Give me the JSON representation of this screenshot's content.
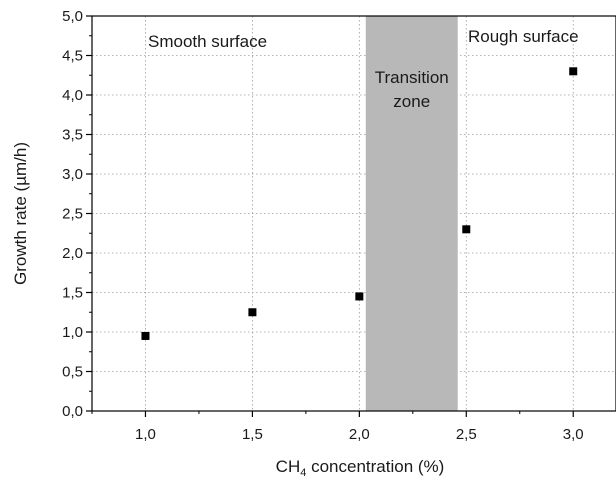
{
  "chart_data": {
    "type": "scatter",
    "xlabel_main": "CH",
    "xlabel_sub": "4",
    "xlabel_rest": " concentration (%)",
    "ylabel": "Growth rate (µm/h)",
    "xlim": [
      0.75,
      3.2
    ],
    "ylim": [
      0.0,
      5.0
    ],
    "x_ticks": [
      1.0,
      1.5,
      2.0,
      2.5,
      3.0
    ],
    "x_tick_labels": [
      "1,0",
      "1,5",
      "2,0",
      "2,5",
      "3,0"
    ],
    "y_ticks": [
      0.0,
      0.5,
      1.0,
      1.5,
      2.0,
      2.5,
      3.0,
      3.5,
      4.0,
      4.5,
      5.0
    ],
    "y_tick_labels": [
      "0,0",
      "0,5",
      "1,0",
      "1,5",
      "2,0",
      "2,5",
      "3,0",
      "3,5",
      "4,0",
      "4,5",
      "5,0"
    ],
    "grid": true,
    "marker_color": "#000000",
    "series": [
      {
        "x": [
          1.0,
          1.5,
          2.0,
          2.5,
          3.0
        ],
        "y": [
          0.95,
          1.25,
          1.45,
          2.3,
          4.3
        ]
      }
    ],
    "shaded_region": {
      "x_range": [
        2.03,
        2.46
      ],
      "color": "#b8b8b8",
      "label_lines": [
        "Transition",
        "zone"
      ]
    },
    "annotations": [
      {
        "text": "Smooth surface"
      },
      {
        "text": "Rough surface"
      }
    ]
  }
}
